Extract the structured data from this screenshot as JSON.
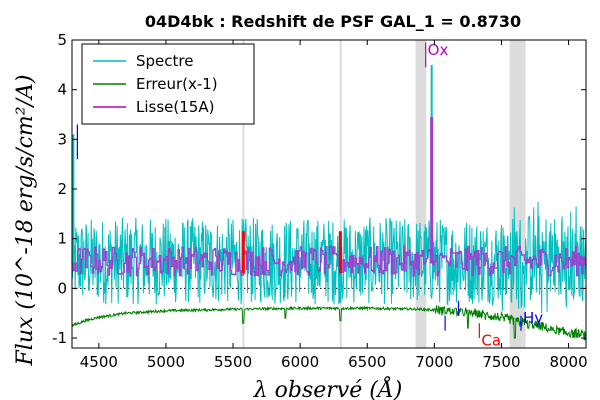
{
  "chart_data": {
    "type": "line",
    "title": "04D4bk : Redshift de PSF GAL_1 = 0.8730",
    "xlabel": "λ observé (Å)",
    "ylabel": "Flux (10^-18 erg/s/cm²/A)",
    "xlim": [
      4300,
      8130
    ],
    "ylim": [
      -1.2,
      5.0
    ],
    "xticks": [
      4500,
      5000,
      5500,
      6000,
      6500,
      7000,
      7500,
      8000
    ],
    "yticks": [
      -1,
      0,
      1,
      2,
      3,
      4,
      5
    ],
    "legend": {
      "placement": "top-left",
      "entries": [
        {
          "label": "Spectre",
          "color": "#00bfbf"
        },
        {
          "label": "Erreur(x-1)",
          "color": "#008000"
        },
        {
          "label": "Lisse(15A)",
          "color": "#bf00bf"
        }
      ]
    },
    "shaded_regions": [
      [
        5570,
        5585
      ],
      [
        6295,
        6310
      ],
      [
        6860,
        6940
      ],
      [
        7560,
        7680
      ]
    ],
    "zero_line": 0,
    "spectrum_mean": 0.55,
    "spectrum_noise": 0.55,
    "smooth_mean": 0.55,
    "smooth_noise": 0.2,
    "error_curve": [
      {
        "x": 4300,
        "y": -0.75
      },
      {
        "x": 4400,
        "y": -0.65
      },
      {
        "x": 4500,
        "y": -0.58
      },
      {
        "x": 4700,
        "y": -0.5
      },
      {
        "x": 5000,
        "y": -0.45
      },
      {
        "x": 5500,
        "y": -0.42
      },
      {
        "x": 6000,
        "y": -0.4
      },
      {
        "x": 6500,
        "y": -0.4
      },
      {
        "x": 6900,
        "y": -0.42
      },
      {
        "x": 7100,
        "y": -0.45
      },
      {
        "x": 7300,
        "y": -0.5
      },
      {
        "x": 7500,
        "y": -0.6
      },
      {
        "x": 7700,
        "y": -0.7
      },
      {
        "x": 7900,
        "y": -0.85
      },
      {
        "x": 8130,
        "y": -0.95
      }
    ],
    "error_dips": [
      {
        "x": 5577,
        "y": -0.7
      },
      {
        "x": 5890,
        "y": -0.6
      },
      {
        "x": 6300,
        "y": -0.65
      },
      {
        "x": 7250,
        "y": -0.8
      },
      {
        "x": 7600,
        "y": -1.0
      },
      {
        "x": 7700,
        "y": -0.8
      }
    ],
    "spikes": [
      {
        "x": 6980,
        "y": 4.5,
        "series": "Spectre"
      },
      {
        "x": 6980,
        "y": 3.45,
        "series": "Lisse(15A)"
      },
      {
        "x": 4310,
        "y": 3.1,
        "series": "Spectre"
      }
    ],
    "sky_lines": [
      {
        "x": 5577,
        "color": "#ff0000"
      },
      {
        "x": 6300,
        "color": "#ff0000"
      }
    ],
    "line_markers": [
      {
        "label": "Ox",
        "x": 6980,
        "y": 4.7,
        "color": "#bf00bf",
        "tick_y": [
          4.45,
          4.95
        ]
      },
      {
        "label": "Ca",
        "x": 7380,
        "y": -1.15,
        "color": "#ff0000",
        "tick_y": [
          -1.0,
          -0.7
        ]
      },
      {
        "label": "Hy",
        "x": 7690,
        "y": -0.7,
        "color": "#0000ff",
        "tick_y": [
          -0.85,
          -0.55
        ]
      }
    ],
    "extra_ticks": [
      {
        "x": 7080,
        "y0": -0.85,
        "y1": -0.55,
        "color": "#0000ff"
      },
      {
        "x": 7180,
        "y0": -0.55,
        "y1": -0.25,
        "color": "#0000ff"
      },
      {
        "x": 4340,
        "y0": 2.6,
        "y1": 3.3,
        "color": "#0000ff"
      }
    ]
  }
}
